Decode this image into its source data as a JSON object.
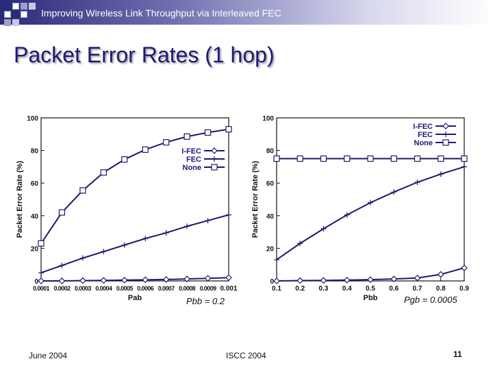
{
  "header": {
    "title": "Improving Wireless Link Throughput via Interleaved FEC",
    "accent": "#2a2a7a"
  },
  "slide": {
    "title": "Packet Error Rates (1 hop)"
  },
  "captions": {
    "left": "Pbb = 0.2",
    "right": "Pgb = 0.0005"
  },
  "footer": {
    "date": "June 2004",
    "venue": "ISCC 2004",
    "page": "11"
  },
  "chart_data": [
    {
      "type": "line",
      "xlabel": "Pab",
      "ylabel": "Packet Error Rate (%)",
      "x": [
        0.0001,
        0.0002,
        0.0003,
        0.0004,
        0.0005,
        0.0006,
        0.0007,
        0.0008,
        0.0009,
        0.001
      ],
      "x_tick_labels": [
        "0.0001",
        "0.0002",
        "0.0003",
        "0.0004",
        "0.0005",
        "0.0006",
        "0.0007",
        "0.0008",
        "0.0009",
        "0.001"
      ],
      "xlim": [
        0.0001,
        0.001
      ],
      "ylim": [
        0,
        100
      ],
      "y_ticks": [
        0,
        20,
        40,
        60,
        80,
        100
      ],
      "legend_position": "center-right",
      "series": [
        {
          "name": "I-FEC",
          "marker": "diamond",
          "values": [
            0,
            0,
            0.2,
            0.3,
            0.5,
            0.7,
            0.9,
            1.2,
            1.6,
            2
          ]
        },
        {
          "name": "FEC",
          "marker": "plus",
          "values": [
            5,
            9.5,
            14,
            18,
            22,
            26,
            29.5,
            33.5,
            37,
            40.5
          ]
        },
        {
          "name": "None",
          "marker": "square",
          "values": [
            23,
            42,
            55.5,
            66.5,
            74.5,
            80.5,
            85,
            88.5,
            91,
            93
          ]
        }
      ]
    },
    {
      "type": "line",
      "xlabel": "Pbb",
      "ylabel": "Packet Error Rate (%)",
      "x": [
        0.1,
        0.2,
        0.3,
        0.4,
        0.5,
        0.6,
        0.7,
        0.8,
        0.9
      ],
      "x_tick_labels": [
        "0.1",
        "0.2",
        "0.3",
        "0.4",
        "0.5",
        "0.6",
        "0.7",
        "0.8",
        "0.9"
      ],
      "xlim": [
        0.1,
        0.9
      ],
      "ylim": [
        0,
        100
      ],
      "y_ticks": [
        0,
        20,
        40,
        60,
        80,
        100
      ],
      "legend_position": "top-right",
      "series": [
        {
          "name": "I-FEC",
          "marker": "diamond",
          "values": [
            0,
            0.2,
            0.3,
            0.5,
            0.8,
            1.2,
            1.8,
            4,
            8
          ]
        },
        {
          "name": "FEC",
          "marker": "plus",
          "values": [
            13,
            23,
            32,
            40.5,
            48,
            54.5,
            60.5,
            65.5,
            70
          ]
        },
        {
          "name": "None",
          "marker": "square",
          "values": [
            75,
            75,
            75,
            75,
            75,
            75,
            75,
            75,
            75
          ]
        }
      ]
    }
  ]
}
